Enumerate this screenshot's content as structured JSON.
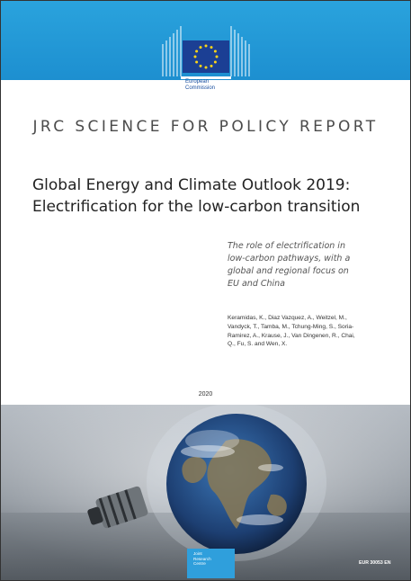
{
  "publisher": {
    "logo_icon": "eu-flag-building-logo",
    "name_lines": [
      "European",
      "Commission"
    ],
    "brand_color": "#1d8fd0"
  },
  "report_type": "JRC SCIENCE FOR POLICY REPORT",
  "title_lines": [
    "Global Energy and Climate Outlook 2019:",
    "Electrification for the low-carbon transition"
  ],
  "subtitle_lines": [
    "The role of electrification in",
    "low-carbon pathways, with a",
    "global and regional focus on",
    "EU and China"
  ],
  "author_lines": [
    "Keramidas, K., Diaz Vazquez, A., Weitzel, M.,",
    "Vandyck, T., Tamba, M., Tchung-Ming, S., Soria-",
    "Ramirez, A., Krause, J., Van Dingenen, R., Chai,",
    "Q., Fu, S. and Wen, X."
  ],
  "year": "2020",
  "cover_image": "light-bulb-with-earth-globe",
  "jrc_badge_lines": [
    "Joint",
    "Research",
    "Centre"
  ],
  "report_code": "EUR 30053 EN"
}
